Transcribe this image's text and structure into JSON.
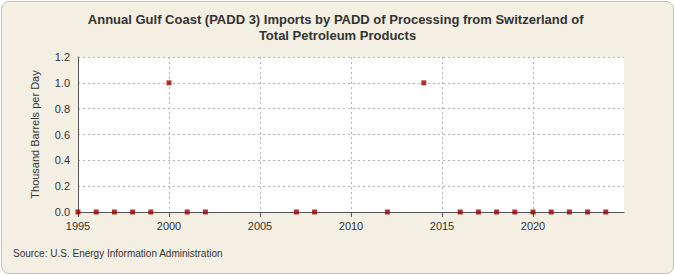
{
  "chart_data": {
    "type": "scatter",
    "title": "Annual Gulf Coast (PADD 3) Imports by PADD of Processing from Switzerland of Total Petroleum Products",
    "ylabel": "Thousand Barrels per Day",
    "source": "Source: U.S. Energy Information Administration",
    "x": [
      1995,
      1996,
      1997,
      1998,
      1999,
      2000,
      2001,
      2002,
      2007,
      2008,
      2012,
      2014,
      2016,
      2017,
      2018,
      2019,
      2020,
      2021,
      2022,
      2023,
      2024
    ],
    "values": [
      0,
      0,
      0,
      0,
      0,
      1,
      0,
      0,
      0,
      0,
      0,
      1,
      0,
      0,
      0,
      0,
      0,
      0,
      0,
      0,
      0
    ],
    "color": "#990000",
    "marker": "square",
    "xlim": [
      1995,
      2025
    ],
    "xticks": [
      1995,
      2000,
      2005,
      2010,
      2015,
      2020
    ],
    "ylim": [
      0,
      1.2
    ],
    "yticks": [
      {
        "value": 0,
        "label": "0.0"
      },
      0.2,
      0.4,
      0.6,
      0.8,
      {
        "value": 1,
        "label": "1.0"
      },
      1.2
    ],
    "grid": true
  }
}
